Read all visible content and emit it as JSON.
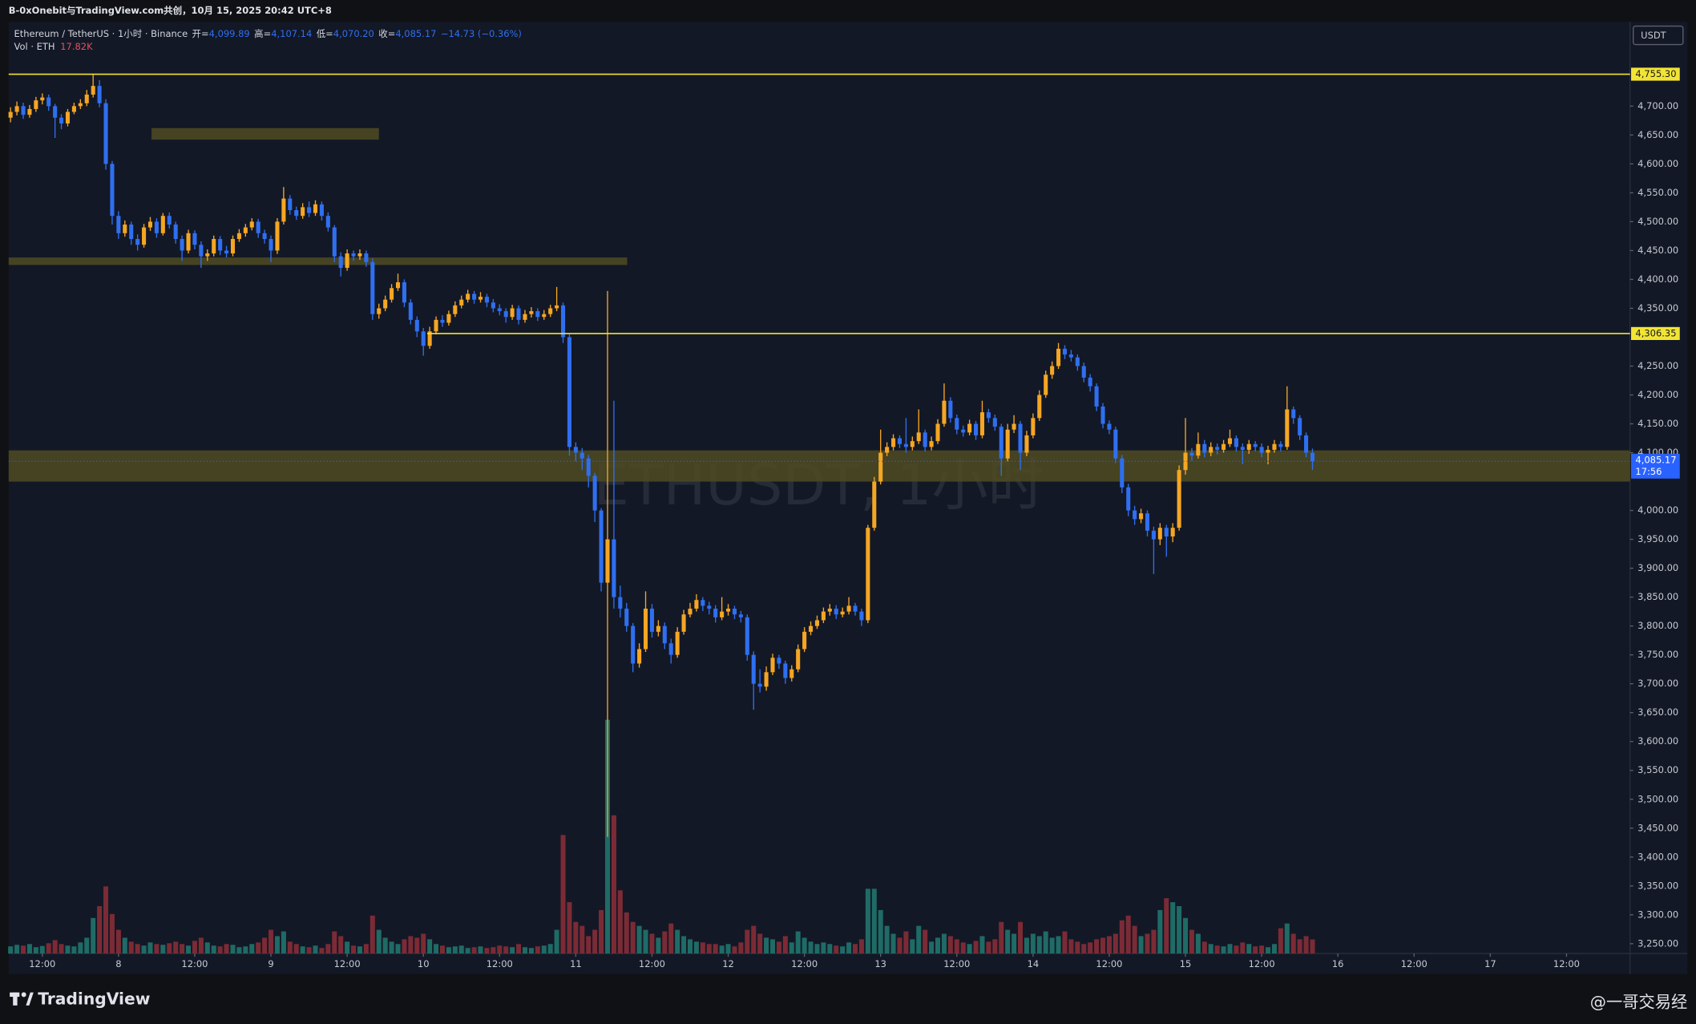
{
  "chart_data": {
    "type": "candlestick",
    "header": "B-0xOnebit与TradingView.com共创，10月 15, 2025 20:42 UTC+8",
    "legend": {
      "symbol": "Ethereum / TetherUS · 1小时 · Binance",
      "open_label": "开=",
      "open": "4,099.89",
      "high_label": "高=",
      "high": "4,107.14",
      "low_label": "低=",
      "low": "4,070.20",
      "close_label": "收=",
      "close": "4,085.17",
      "change": "−14.73 (−0.36%)",
      "volume_name": "Vol · ETH",
      "volume": "17.82K"
    },
    "watermark": "ETHUSDT, 1小时",
    "currency": "USDT",
    "brand": "TradingView",
    "credit": "@一哥交易经",
    "up_color": "#f5a623",
    "down_color": "#2f6ff0",
    "volume_up_color": "#1f6b66",
    "volume_down_color": "#7b2b35",
    "grid": false,
    "open": [
      4680,
      4690,
      4700,
      4685,
      4695,
      4710,
      4715,
      4700,
      4680,
      4670,
      4690,
      4700,
      4705,
      4720,
      4735,
      4705,
      4600,
      4510,
      4480,
      4495,
      4470,
      4460,
      4490,
      4500,
      4480,
      4510,
      4495,
      4470,
      4450,
      4480,
      4460,
      4440,
      4445,
      4470,
      4450,
      4445,
      4470,
      4480,
      4490,
      4500,
      4480,
      4470,
      4450,
      4500,
      4540,
      4520,
      4510,
      4525,
      4515,
      4530,
      4510,
      4490,
      4440,
      4420,
      4445,
      4440,
      4445,
      4430,
      4340,
      4350,
      4365,
      4385,
      4395,
      4360,
      4330,
      4310,
      4285,
      4310,
      4330,
      4325,
      4340,
      4355,
      4365,
      4375,
      4365,
      4370,
      4360,
      4350,
      4345,
      4335,
      4350,
      4330,
      4340,
      4345,
      4335,
      4340,
      4350,
      4355,
      4300,
      4110,
      4100,
      4090,
      4060,
      4000,
      3875,
      3950,
      3850,
      3830,
      3800,
      3735,
      3760,
      3830,
      3790,
      3800,
      3770,
      3750,
      3790,
      3820,
      3830,
      3845,
      3835,
      3830,
      3815,
      3825,
      3830,
      3820,
      3815,
      3750,
      3700,
      3695,
      3720,
      3745,
      3735,
      3710,
      3725,
      3760,
      3790,
      3800,
      3810,
      3825,
      3830,
      3820,
      3825,
      3835,
      3825,
      3810,
      3970,
      4050,
      4100,
      4110,
      4125,
      4115,
      4110,
      4120,
      4135,
      4110,
      4120,
      4150,
      4190,
      4160,
      4140,
      4135,
      4150,
      4130,
      4170,
      4160,
      4145,
      4090,
      4140,
      4150,
      4100,
      4130,
      4160,
      4200,
      4235,
      4250,
      4280,
      4270,
      4265,
      4250,
      4230,
      4215,
      4180,
      4150,
      4140,
      4090,
      4040,
      4000,
      3985,
      3995,
      3965,
      3950,
      3970,
      3955,
      3970,
      4070,
      4100,
      4095,
      4115,
      4100,
      4110,
      4105,
      4115,
      4125,
      4110,
      4105,
      4115,
      4110,
      4100,
      4105,
      4115,
      4110,
      4175,
      4160,
      4130,
      4099.89
    ],
    "high": [
      4698,
      4708,
      4706,
      4702,
      4716,
      4722,
      4720,
      4704,
      4686,
      4695,
      4706,
      4712,
      4728,
      4755,
      4745,
      4712,
      4605,
      4518,
      4502,
      4500,
      4478,
      4496,
      4508,
      4506,
      4515,
      4516,
      4500,
      4476,
      4486,
      4485,
      4466,
      4452,
      4476,
      4475,
      4458,
      4476,
      4487,
      4496,
      4506,
      4505,
      4486,
      4476,
      4506,
      4560,
      4546,
      4526,
      4532,
      4535,
      4537,
      4535,
      4516,
      4494,
      4447,
      4452,
      4450,
      4452,
      4450,
      4436,
      4358,
      4372,
      4392,
      4410,
      4400,
      4366,
      4336,
      4316,
      4318,
      4336,
      4338,
      4346,
      4362,
      4372,
      4382,
      4380,
      4378,
      4375,
      4366,
      4357,
      4350,
      4356,
      4355,
      4347,
      4352,
      4350,
      4347,
      4356,
      4387,
      4360,
      4305,
      4118,
      4108,
      4096,
      4065,
      4004,
      4380,
      4190,
      3870,
      3840,
      3805,
      3770,
      3860,
      3838,
      3810,
      3806,
      3778,
      3798,
      3828,
      3840,
      3855,
      3850,
      3842,
      3836,
      3850,
      3838,
      3835,
      3826,
      3820,
      3756,
      3725,
      3730,
      3752,
      3750,
      3740,
      3732,
      3768,
      3798,
      3808,
      3818,
      3832,
      3838,
      3836,
      3832,
      3850,
      3840,
      3830,
      3975,
      4058,
      4140,
      4118,
      4132,
      4130,
      4160,
      4128,
      4175,
      4140,
      4128,
      4158,
      4220,
      4196,
      4166,
      4147,
      4157,
      4155,
      4190,
      4176,
      4166,
      4150,
      4150,
      4165,
      4155,
      4138,
      4168,
      4208,
      4242,
      4258,
      4290,
      4286,
      4278,
      4270,
      4256,
      4236,
      4220,
      4186,
      4156,
      4145,
      4096,
      4046,
      4008,
      4003,
      4000,
      3972,
      3978,
      3975,
      3978,
      4078,
      4160,
      4108,
      4135,
      4122,
      4118,
      4116,
      4122,
      4140,
      4130,
      4116,
      4122,
      4120,
      4116,
      4112,
      4122,
      4120,
      4215,
      4180,
      4165,
      4135,
      4107.14
    ],
    "low": [
      4672,
      4684,
      4678,
      4680,
      4690,
      4703,
      4692,
      4645,
      4660,
      4665,
      4686,
      4695,
      4700,
      4715,
      4698,
      4590,
      4495,
      4470,
      4474,
      4460,
      4450,
      4455,
      4484,
      4472,
      4476,
      4488,
      4462,
      4432,
      4445,
      4452,
      4420,
      4432,
      4440,
      4442,
      4438,
      4440,
      4465,
      4474,
      4485,
      4472,
      4462,
      4430,
      4444,
      4495,
      4512,
      4503,
      4505,
      4508,
      4510,
      4502,
      4483,
      4430,
      4405,
      4415,
      4432,
      4434,
      4422,
      4330,
      4332,
      4345,
      4360,
      4380,
      4352,
      4322,
      4300,
      4268,
      4280,
      4305,
      4318,
      4320,
      4335,
      4350,
      4360,
      4358,
      4360,
      4352,
      4343,
      4338,
      4325,
      4330,
      4322,
      4325,
      4334,
      4328,
      4330,
      4335,
      4345,
      4290,
      4095,
      4085,
      4070,
      4040,
      3980,
      3860,
      3435,
      3830,
      3815,
      3790,
      3720,
      3728,
      3755,
      3780,
      3782,
      3760,
      3735,
      3745,
      3785,
      3815,
      3825,
      3826,
      3820,
      3806,
      3810,
      3818,
      3812,
      3806,
      3740,
      3655,
      3685,
      3688,
      3715,
      3726,
      3700,
      3704,
      3720,
      3755,
      3784,
      3795,
      3805,
      3818,
      3812,
      3815,
      3820,
      3818,
      3800,
      3805,
      3965,
      4045,
      4094,
      4104,
      4108,
      4100,
      4104,
      4115,
      4102,
      4104,
      4115,
      4145,
      4152,
      4132,
      4128,
      4130,
      4122,
      4125,
      4152,
      4138,
      4060,
      4085,
      4134,
      4070,
      4094,
      4125,
      4155,
      4195,
      4228,
      4245,
      4262,
      4258,
      4242,
      4222,
      4206,
      4172,
      4142,
      4132,
      4082,
      4030,
      3990,
      3975,
      3978,
      3955,
      3890,
      3940,
      3920,
      3945,
      3965,
      4062,
      4086,
      4090,
      4092,
      4094,
      4097,
      4100,
      4110,
      4102,
      4080,
      4098,
      4102,
      4092,
      4080,
      4100,
      4102,
      4105,
      4150,
      4122,
      4092,
      4070.2
    ],
    "close": [
      4690,
      4700,
      4685,
      4695,
      4710,
      4715,
      4700,
      4680,
      4670,
      4690,
      4700,
      4705,
      4720,
      4735,
      4705,
      4600,
      4510,
      4480,
      4495,
      4470,
      4460,
      4490,
      4500,
      4480,
      4510,
      4495,
      4470,
      4450,
      4480,
      4460,
      4440,
      4445,
      4470,
      4450,
      4445,
      4470,
      4480,
      4490,
      4500,
      4480,
      4470,
      4450,
      4500,
      4540,
      4520,
      4510,
      4525,
      4515,
      4530,
      4510,
      4490,
      4440,
      4420,
      4445,
      4440,
      4445,
      4430,
      4340,
      4350,
      4365,
      4385,
      4395,
      4360,
      4330,
      4310,
      4285,
      4310,
      4330,
      4325,
      4340,
      4355,
      4365,
      4375,
      4365,
      4370,
      4360,
      4350,
      4345,
      4335,
      4350,
      4330,
      4340,
      4345,
      4335,
      4340,
      4350,
      4355,
      4300,
      4110,
      4100,
      4090,
      4060,
      4000,
      3875,
      3950,
      3850,
      3830,
      3800,
      3735,
      3760,
      3830,
      3790,
      3800,
      3770,
      3750,
      3790,
      3820,
      3830,
      3845,
      3835,
      3830,
      3815,
      3825,
      3830,
      3820,
      3815,
      3750,
      3700,
      3695,
      3720,
      3745,
      3735,
      3710,
      3725,
      3760,
      3790,
      3800,
      3810,
      3825,
      3830,
      3820,
      3825,
      3835,
      3825,
      3810,
      3970,
      4050,
      4100,
      4110,
      4125,
      4115,
      4110,
      4120,
      4135,
      4110,
      4120,
      4150,
      4190,
      4160,
      4140,
      4135,
      4150,
      4130,
      4170,
      4160,
      4145,
      4090,
      4140,
      4150,
      4100,
      4130,
      4160,
      4200,
      4235,
      4250,
      4280,
      4270,
      4265,
      4250,
      4230,
      4215,
      4180,
      4150,
      4140,
      4090,
      4040,
      4000,
      3985,
      3995,
      3965,
      3950,
      3970,
      3955,
      3970,
      4070,
      4100,
      4095,
      4115,
      4100,
      4110,
      4105,
      4115,
      4125,
      4110,
      4105,
      4115,
      4110,
      4100,
      4105,
      4115,
      4110,
      4175,
      4160,
      4130,
      4099.89,
      4085.17
    ],
    "volume": [
      9000,
      11000,
      10000,
      12000,
      8000,
      9500,
      13000,
      17000,
      12000,
      10000,
      9000,
      14000,
      20000,
      45000,
      60000,
      85000,
      50000,
      30000,
      20000,
      15000,
      12000,
      10000,
      14000,
      12000,
      11000,
      13000,
      15000,
      12000,
      10000,
      16000,
      20000,
      14000,
      10000,
      9000,
      12000,
      11000,
      8000,
      9000,
      12000,
      14000,
      20000,
      30000,
      22000,
      28000,
      15000,
      12000,
      9000,
      8000,
      10000,
      7000,
      12000,
      28000,
      22000,
      15000,
      10000,
      9000,
      12000,
      48000,
      30000,
      20000,
      15000,
      12000,
      18000,
      22000,
      20000,
      25000,
      18000,
      12000,
      10000,
      8000,
      9000,
      10000,
      7000,
      8000,
      9000,
      7000,
      8000,
      10000,
      9000,
      8000,
      12000,
      8000,
      7000,
      9000,
      10000,
      12000,
      30000,
      150000,
      65000,
      40000,
      35000,
      22000,
      30000,
      55000,
      296000,
      175000,
      80000,
      52000,
      40000,
      35000,
      30000,
      25000,
      20000,
      28000,
      38000,
      30000,
      22000,
      18000,
      15000,
      14000,
      12000,
      12000,
      10000,
      12000,
      9000,
      14000,
      30000,
      35000,
      25000,
      20000,
      18000,
      15000,
      22000,
      14000,
      28000,
      20000,
      15000,
      12000,
      14000,
      12000,
      10000,
      9000,
      14000,
      12000,
      18000,
      82000,
      82000,
      55000,
      35000,
      25000,
      20000,
      28000,
      18000,
      35000,
      30000,
      15000,
      20000,
      25000,
      22000,
      18000,
      14000,
      12000,
      16000,
      22000,
      15000,
      18000,
      40000,
      30000,
      25000,
      40000,
      20000,
      25000,
      22000,
      28000,
      20000,
      22000,
      28000,
      18000,
      15000,
      12000,
      14000,
      18000,
      20000,
      22000,
      25000,
      42000,
      48000,
      35000,
      22000,
      25000,
      30000,
      55000,
      70000,
      65000,
      60000,
      45000,
      30000,
      25000,
      15000,
      12000,
      10000,
      9000,
      12000,
      10000,
      14000,
      12000,
      9000,
      10000,
      8000,
      12000,
      32000,
      38000,
      25000,
      18000,
      22000,
      17820
    ],
    "xlim": [
      -0.3,
      255
    ],
    "xticks": [
      {
        "value": 5,
        "label": "12:00"
      },
      {
        "value": 17,
        "label": "8"
      },
      {
        "value": 29,
        "label": "12:00"
      },
      {
        "value": 41,
        "label": "9"
      },
      {
        "value": 53,
        "label": "12:00"
      },
      {
        "value": 65,
        "label": "10"
      },
      {
        "value": 77,
        "label": "12:00"
      },
      {
        "value": 89,
        "label": "11"
      },
      {
        "value": 101,
        "label": "12:00"
      },
      {
        "value": 113,
        "label": "12"
      },
      {
        "value": 125,
        "label": "12:00"
      },
      {
        "value": 137,
        "label": "13"
      },
      {
        "value": 149,
        "label": "12:00"
      },
      {
        "value": 161,
        "label": "14"
      },
      {
        "value": 173,
        "label": "12:00"
      },
      {
        "value": 185,
        "label": "15"
      },
      {
        "value": 197,
        "label": "12:00"
      },
      {
        "value": 209,
        "label": "16"
      },
      {
        "value": 221,
        "label": "12:00"
      },
      {
        "value": 233,
        "label": "17"
      },
      {
        "value": 245,
        "label": "12:00"
      }
    ],
    "ylim": [
      3233,
      4846
    ],
    "yticks": [
      {
        "value": 4700,
        "label": "4,700.00"
      },
      {
        "value": 4650,
        "label": "4,650.00"
      },
      {
        "value": 4600,
        "label": "4,600.00"
      },
      {
        "value": 4550,
        "label": "4,550.00"
      },
      {
        "value": 4500,
        "label": "4,500.00"
      },
      {
        "value": 4450,
        "label": "4,450.00"
      },
      {
        "value": 4400,
        "label": "4,400.00"
      },
      {
        "value": 4350,
        "label": "4,350.00"
      },
      {
        "value": 4250,
        "label": "4,250.00"
      },
      {
        "value": 4200,
        "label": "4,200.00"
      },
      {
        "value": 4150,
        "label": "4,150.00"
      },
      {
        "value": 4100,
        "label": "4,100.00"
      },
      {
        "value": 4000,
        "label": "4,000.00"
      },
      {
        "value": 3950,
        "label": "3,950.00"
      },
      {
        "value": 3900,
        "label": "3,900.00"
      },
      {
        "value": 3850,
        "label": "3,850.00"
      },
      {
        "value": 3800,
        "label": "3,800.00"
      },
      {
        "value": 3750,
        "label": "3,750.00"
      },
      {
        "value": 3700,
        "label": "3,700.00"
      },
      {
        "value": 3650,
        "label": "3,650.00"
      },
      {
        "value": 3600,
        "label": "3,600.00"
      },
      {
        "value": 3550,
        "label": "3,550.00"
      },
      {
        "value": 3500,
        "label": "3,500.00"
      },
      {
        "value": 3450,
        "label": "3,450.00"
      },
      {
        "value": 3400,
        "label": "3,400.00"
      },
      {
        "value": 3350,
        "label": "3,350.00"
      },
      {
        "value": 3300,
        "label": "3,300.00"
      },
      {
        "value": 3250,
        "label": "3,250.00"
      }
    ],
    "level_color": "#f2e434",
    "levels": [
      {
        "value": 4755.3,
        "label": "4,755.30",
        "from": -0.3
      },
      {
        "value": 4306.35,
        "label": "4,306.35",
        "from": 65.6
      }
    ],
    "zone_color": "#4f4b22",
    "zones": [
      {
        "top": 4662,
        "bottom": 4642,
        "from": 22.2,
        "to": 58
      },
      {
        "top": 4438,
        "bottom": 4425,
        "from": -0.3,
        "to": 97.1
      },
      {
        "top": 4104,
        "bottom": 4050,
        "from": -0.3,
        "to": 255
      }
    ],
    "last_price": {
      "label": "4,085.17",
      "countdown": "17:56",
      "color": "#2962ff"
    }
  }
}
